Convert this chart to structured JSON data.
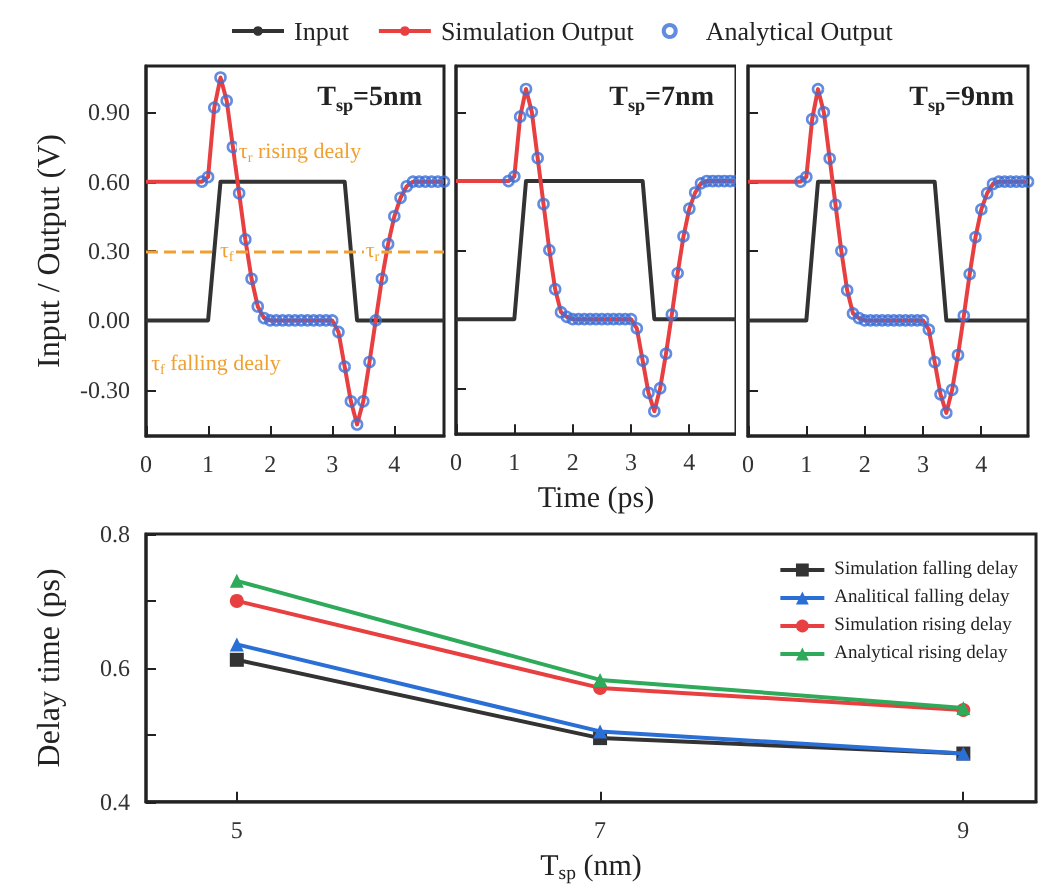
{
  "chart_data": [
    {
      "type": "line",
      "title": "T$_{sp}$=5nm",
      "ylabel": "Input / Output (V)",
      "legend": "top",
      "xlim": [
        0,
        4.8
      ],
      "xticks": [
        0,
        1,
        2,
        3,
        4
      ],
      "ylim": [
        -0.5,
        1.1
      ],
      "yticks": [
        {
          "value": -0.3,
          "label": "-0.30"
        },
        {
          "value": 0,
          "label": "0.00"
        },
        {
          "value": 0.3,
          "label": "0.30"
        },
        {
          "value": 0.6,
          "label": "0.60"
        },
        {
          "value": 0.9,
          "label": "0.90"
        }
      ],
      "annotations": [
        "τ$_{r}$ rising dealy",
        "τ$_{f}$ falling dealy",
        {
          "text": "τ$_{f}$",
          "x": 1.3,
          "y": 0.3
        },
        {
          "text": "τ$_{r}$",
          "x": 3.65,
          "y": 0.3
        }
      ],
      "ref_lines": [
        {
          "axis": "y",
          "value": 0.3,
          "label": null,
          "color": "#f0a030",
          "line_style": "dashed"
        }
      ],
      "series": [
        {
          "name": "Input",
          "marker": "none",
          "color": "#333333",
          "x": [
            0,
            1.0,
            1.2,
            3.2,
            3.4,
            4.8
          ],
          "values": [
            0,
            0,
            0.6,
            0.6,
            0,
            0
          ]
        },
        {
          "name": "Simulation Output",
          "marker": "none",
          "color": "#e84040",
          "x": [
            0,
            0.9,
            1.0,
            1.1,
            1.2,
            1.3,
            1.4,
            1.5,
            1.6,
            1.7,
            1.8,
            1.9,
            2.0,
            2.1,
            2.2,
            2.3,
            2.4,
            2.5,
            2.6,
            2.7,
            2.8,
            2.9,
            3.0,
            3.1,
            3.2,
            3.3,
            3.4,
            3.5,
            3.6,
            3.7,
            3.8,
            3.9,
            4.0,
            4.1,
            4.2,
            4.3,
            4.4,
            4.5,
            4.6,
            4.7,
            4.8
          ],
          "values": [
            0.6,
            0.6,
            0.62,
            0.92,
            1.05,
            0.95,
            0.75,
            0.55,
            0.35,
            0.18,
            0.06,
            0.01,
            0,
            0,
            0,
            0,
            0,
            0,
            0,
            0,
            0,
            0,
            0,
            -0.05,
            -0.2,
            -0.35,
            -0.45,
            -0.35,
            -0.18,
            0,
            0.18,
            0.33,
            0.45,
            0.53,
            0.58,
            0.6,
            0.6,
            0.6,
            0.6,
            0.6,
            0.6
          ]
        },
        {
          "name": "Analytical Output",
          "type": "scatter",
          "marker": "circle",
          "color": "#3a6fd8",
          "x": [
            0.9,
            1.0,
            1.1,
            1.2,
            1.3,
            1.4,
            1.5,
            1.6,
            1.7,
            1.8,
            1.9,
            2.0,
            2.1,
            2.2,
            2.3,
            2.4,
            2.5,
            2.6,
            2.7,
            2.8,
            2.9,
            3.0,
            3.1,
            3.2,
            3.3,
            3.4,
            3.5,
            3.6,
            3.7,
            3.8,
            3.9,
            4.0,
            4.1,
            4.2,
            4.3,
            4.4,
            4.5,
            4.6,
            4.7,
            4.8
          ],
          "values": [
            0.6,
            0.62,
            0.92,
            1.05,
            0.95,
            0.75,
            0.55,
            0.35,
            0.18,
            0.06,
            0.01,
            0,
            0,
            0,
            0,
            0,
            0,
            0,
            0,
            0,
            0,
            0,
            -0.05,
            -0.2,
            -0.35,
            -0.45,
            -0.35,
            -0.18,
            0,
            0.18,
            0.33,
            0.45,
            0.53,
            0.58,
            0.6,
            0.6,
            0.6,
            0.6,
            0.6,
            0.6
          ]
        }
      ]
    },
    {
      "type": "line",
      "title": "T$_{sp}$=7nm",
      "xlabel": "Time (ps)",
      "tick_labels": "x",
      "xlim": [
        0,
        4.8
      ],
      "xticks": [
        0,
        1,
        2,
        3,
        4
      ],
      "ylim": [
        -0.5,
        1.1
      ],
      "yticks": [
        -0.3,
        0,
        0.3,
        0.6,
        0.9
      ],
      "series": [
        {
          "marker": "none",
          "color": "#333333",
          "x": [
            0,
            1.0,
            1.2,
            3.2,
            3.4,
            4.8
          ],
          "values": [
            0,
            0,
            0.6,
            0.6,
            0,
            0
          ]
        },
        {
          "marker": "none",
          "color": "#e84040",
          "x": [
            0,
            0.9,
            1.0,
            1.1,
            1.2,
            1.3,
            1.4,
            1.5,
            1.6,
            1.7,
            1.8,
            1.9,
            2.0,
            2.1,
            2.2,
            2.3,
            2.4,
            2.5,
            2.6,
            2.7,
            2.8,
            2.9,
            3.0,
            3.1,
            3.2,
            3.3,
            3.4,
            3.5,
            3.6,
            3.7,
            3.8,
            3.9,
            4.0,
            4.1,
            4.2,
            4.3,
            4.4,
            4.5,
            4.6,
            4.7,
            4.8
          ],
          "values": [
            0.6,
            0.6,
            0.62,
            0.88,
            1.0,
            0.9,
            0.7,
            0.5,
            0.3,
            0.13,
            0.03,
            0.01,
            0,
            0,
            0,
            0,
            0,
            0,
            0,
            0,
            0,
            0,
            0,
            -0.04,
            -0.18,
            -0.32,
            -0.4,
            -0.3,
            -0.15,
            0.02,
            0.2,
            0.36,
            0.48,
            0.55,
            0.59,
            0.6,
            0.6,
            0.6,
            0.6,
            0.6,
            0.6
          ]
        },
        {
          "type": "scatter",
          "marker": "circle",
          "color": "#3a6fd8",
          "x": [
            0.9,
            1.0,
            1.1,
            1.2,
            1.3,
            1.4,
            1.5,
            1.6,
            1.7,
            1.8,
            1.9,
            2.0,
            2.1,
            2.2,
            2.3,
            2.4,
            2.5,
            2.6,
            2.7,
            2.8,
            2.9,
            3.0,
            3.1,
            3.2,
            3.3,
            3.4,
            3.5,
            3.6,
            3.7,
            3.8,
            3.9,
            4.0,
            4.1,
            4.2,
            4.3,
            4.4,
            4.5,
            4.6,
            4.7,
            4.8
          ],
          "values": [
            0.6,
            0.62,
            0.88,
            1.0,
            0.9,
            0.7,
            0.5,
            0.3,
            0.13,
            0.03,
            0.01,
            0,
            0,
            0,
            0,
            0,
            0,
            0,
            0,
            0,
            0,
            0,
            -0.04,
            -0.18,
            -0.32,
            -0.4,
            -0.3,
            -0.15,
            0.02,
            0.2,
            0.36,
            0.48,
            0.55,
            0.59,
            0.6,
            0.6,
            0.6,
            0.6,
            0.6,
            0.6
          ]
        }
      ]
    },
    {
      "type": "line",
      "title": "T$_{sp}$=9nm",
      "tick_labels": "x",
      "xlim": [
        0,
        4.8
      ],
      "xticks": [
        0,
        1,
        2,
        3,
        4
      ],
      "ylim": [
        -0.5,
        1.1
      ],
      "yticks": [
        -0.3,
        0,
        0.3,
        0.6,
        0.9
      ],
      "series": [
        {
          "marker": "none",
          "color": "#333333",
          "x": [
            0,
            1.0,
            1.2,
            3.2,
            3.4,
            4.8
          ],
          "values": [
            0,
            0,
            0.6,
            0.6,
            0,
            0
          ]
        },
        {
          "marker": "none",
          "color": "#e84040",
          "x": [
            0,
            0.9,
            1.0,
            1.1,
            1.2,
            1.3,
            1.4,
            1.5,
            1.6,
            1.7,
            1.8,
            1.9,
            2.0,
            2.1,
            2.2,
            2.3,
            2.4,
            2.5,
            2.6,
            2.7,
            2.8,
            2.9,
            3.0,
            3.1,
            3.2,
            3.3,
            3.4,
            3.5,
            3.6,
            3.7,
            3.8,
            3.9,
            4.0,
            4.1,
            4.2,
            4.3,
            4.4,
            4.5,
            4.6,
            4.7,
            4.8
          ],
          "values": [
            0.6,
            0.6,
            0.62,
            0.87,
            1.0,
            0.9,
            0.7,
            0.5,
            0.3,
            0.13,
            0.03,
            0.01,
            0,
            0,
            0,
            0,
            0,
            0,
            0,
            0,
            0,
            0,
            0,
            -0.04,
            -0.18,
            -0.32,
            -0.4,
            -0.3,
            -0.15,
            0.02,
            0.2,
            0.36,
            0.48,
            0.55,
            0.59,
            0.6,
            0.6,
            0.6,
            0.6,
            0.6,
            0.6
          ]
        },
        {
          "type": "scatter",
          "marker": "circle",
          "color": "#3a6fd8",
          "x": [
            0.9,
            1.0,
            1.1,
            1.2,
            1.3,
            1.4,
            1.5,
            1.6,
            1.7,
            1.8,
            1.9,
            2.0,
            2.1,
            2.2,
            2.3,
            2.4,
            2.5,
            2.6,
            2.7,
            2.8,
            2.9,
            3.0,
            3.1,
            3.2,
            3.3,
            3.4,
            3.5,
            3.6,
            3.7,
            3.8,
            3.9,
            4.0,
            4.1,
            4.2,
            4.3,
            4.4,
            4.5,
            4.6,
            4.7,
            4.8
          ],
          "values": [
            0.6,
            0.62,
            0.87,
            1.0,
            0.9,
            0.7,
            0.5,
            0.3,
            0.13,
            0.03,
            0.01,
            0,
            0,
            0,
            0,
            0,
            0,
            0,
            0,
            0,
            0,
            0,
            -0.04,
            -0.18,
            -0.32,
            -0.4,
            -0.3,
            -0.15,
            0.02,
            0.2,
            0.36,
            0.48,
            0.55,
            0.59,
            0.6,
            0.6,
            0.6,
            0.6,
            0.6,
            0.6
          ]
        }
      ]
    },
    {
      "type": "line",
      "xlabel": "T$_{sp}$ (nm)",
      "ylabel": "Delay time (ps)",
      "legend": "top right",
      "x": [
        5,
        7,
        9
      ],
      "xlim": [
        4.5,
        9.4
      ],
      "xticks": [
        5,
        7,
        9
      ],
      "ylim": [
        0.4,
        0.8
      ],
      "yticks": [
        0.4,
        {
          "value": 0.5,
          "label": null
        },
        0.6,
        {
          "value": 0.7,
          "label": null
        },
        0.8
      ],
      "series": [
        {
          "name": "Simulation falling delay",
          "marker": "square",
          "color": "#333333",
          "values": [
            0.612,
            0.495,
            0.472
          ]
        },
        {
          "name": "Analitical falling delay",
          "marker": "triangle",
          "color": "#2a6fd6",
          "values": [
            0.635,
            0.505,
            0.472
          ]
        },
        {
          "name": "Simulation rising delay",
          "marker": "circle",
          "color": "#e84040",
          "values": [
            0.7,
            0.57,
            0.537
          ]
        },
        {
          "name": "Analytical rising delay",
          "marker": "triangle",
          "color": "#2eaa5a",
          "values": [
            0.73,
            0.582,
            0.54
          ]
        }
      ]
    }
  ]
}
